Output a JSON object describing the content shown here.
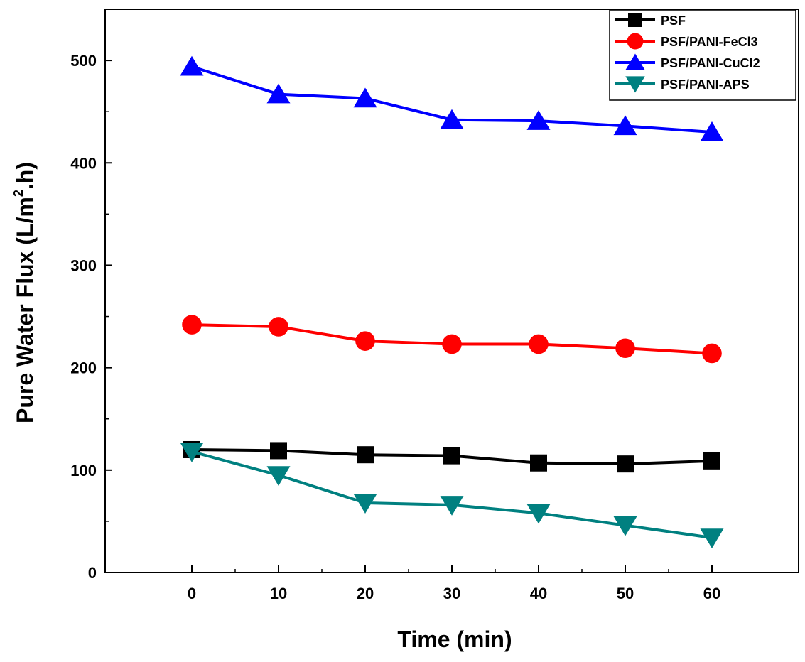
{
  "chart_data": {
    "type": "line",
    "xlabel": "Time (min)",
    "ylabel": {
      "pre": "Pure Water Flux (L/m",
      "sup": "2",
      "post": ".h)"
    },
    "x": [
      0,
      10,
      20,
      30,
      40,
      50,
      60
    ],
    "xlim": [
      -10,
      70
    ],
    "ylim": [
      0,
      550
    ],
    "xticks": [
      0,
      10,
      20,
      30,
      40,
      50,
      60
    ],
    "yticks": [
      0,
      100,
      200,
      300,
      400,
      500
    ],
    "grid": false,
    "legend_position": "top-right",
    "series": [
      {
        "name": "PSF",
        "marker": "square",
        "color": "#000000",
        "values": [
          120,
          119,
          115,
          114,
          107,
          106,
          109
        ]
      },
      {
        "name": "PSF/PANI-FeCl3",
        "marker": "circle",
        "color": "#ff0000",
        "values": [
          242,
          240,
          226,
          223,
          223,
          219,
          214
        ]
      },
      {
        "name": "PSF/PANI-CuCl2",
        "marker": "triangle-up",
        "color": "#0000ff",
        "values": [
          494,
          467,
          463,
          442,
          441,
          436,
          430
        ]
      },
      {
        "name": "PSF/PANI-APS",
        "marker": "triangle-down",
        "color": "#008080",
        "values": [
          118,
          95,
          68,
          66,
          58,
          46,
          34
        ]
      }
    ]
  }
}
